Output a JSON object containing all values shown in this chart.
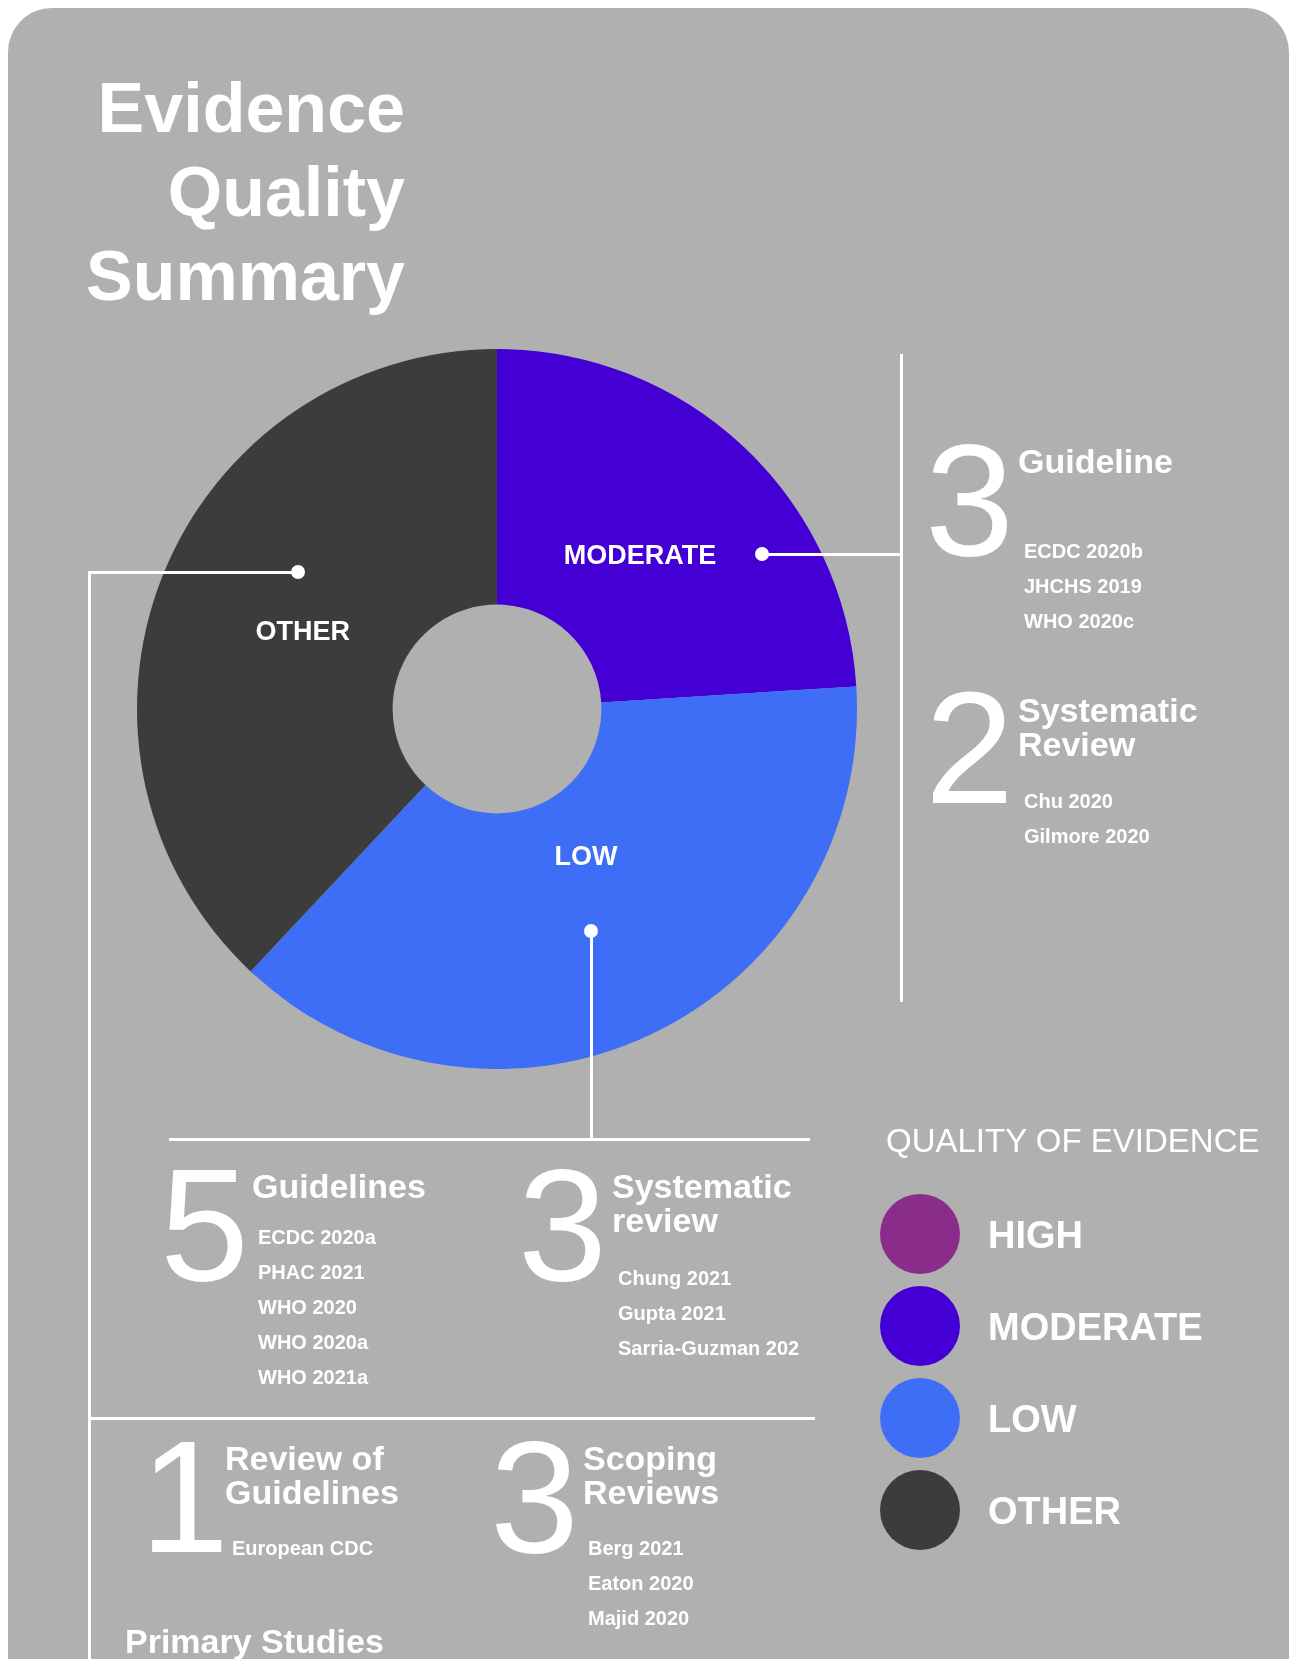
{
  "chart_data": {
    "type": "donut",
    "title": "Evidence Quality Summary",
    "categories": [
      "HIGH",
      "MODERATE",
      "LOW",
      "OTHER"
    ],
    "values": [
      0,
      24,
      38,
      38
    ],
    "colors": [
      "#8a2d8a",
      "#4400d4",
      "#3d6ef5",
      "#3c3c3c"
    ],
    "legend": "bottom right",
    "legend_title": "QUALITY OF EVIDENCE",
    "annotations": [
      "3",
      "Guideline",
      "ECDC 2020b",
      "JHCHS 2019",
      "WHO 2020c",
      "2",
      "Systematic Review",
      "Chu 2020",
      "Gilmore 2020",
      "5",
      "Guidelines",
      "ECDC 2020a",
      "PHAC 2021",
      "WHO 2020",
      "WHO 2020a",
      "WHO 2021a",
      "3",
      "Systematic review",
      "Chung 2021",
      "Gupta 2021",
      "Sarria-Guzman 202",
      "1",
      "Review of Guidelines",
      "European CDC",
      "3",
      "Scoping Reviews",
      "Berg 2021",
      "Eaton 2020",
      "Majid 2020",
      "Primary Studies"
    ]
  }
}
